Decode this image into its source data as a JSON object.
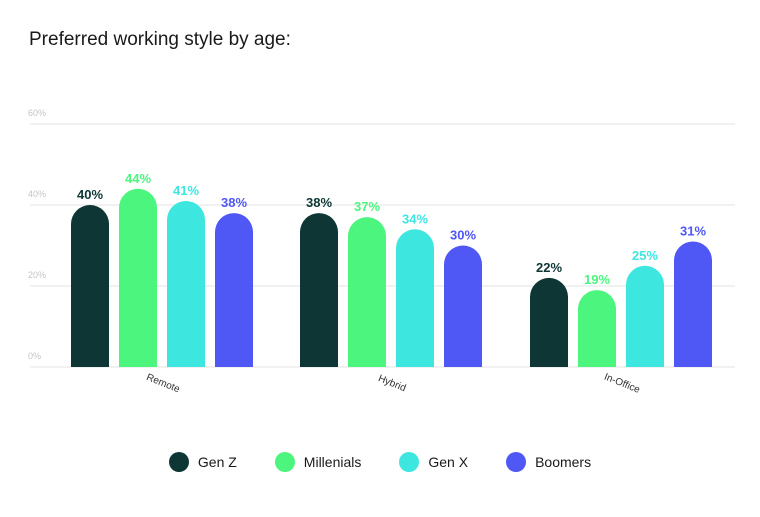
{
  "chart_data": {
    "type": "bar",
    "title": "Preferred working style by age:",
    "categories": [
      "Remote",
      "Hybrid",
      "In-Office"
    ],
    "series": [
      {
        "name": "Gen Z",
        "color": "#0d3635",
        "values": [
          40,
          38,
          22
        ]
      },
      {
        "name": "Millenials",
        "color": "#4cf57e",
        "values": [
          44,
          37,
          19
        ]
      },
      {
        "name": "Gen X",
        "color": "#3ee6e0",
        "values": [
          41,
          34,
          25
        ]
      },
      {
        "name": "Boomers",
        "color": "#4f57f5",
        "values": [
          38,
          30,
          31
        ]
      }
    ],
    "ylim": [
      0,
      60
    ],
    "yticks": [
      "0%",
      "20%",
      "40%",
      "60%"
    ],
    "value_suffix": "%",
    "grid": true,
    "legend_position": "bottom-center"
  }
}
